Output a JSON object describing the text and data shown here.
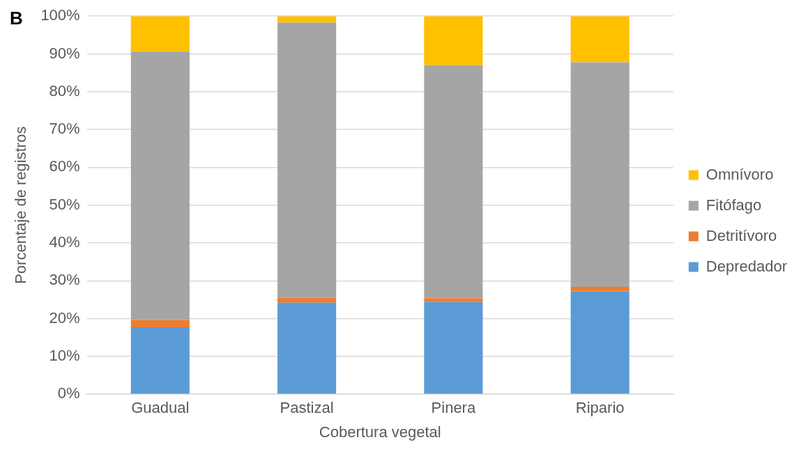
{
  "chart_data": {
    "type": "bar",
    "title": "B",
    "xlabel": "Cobertura vegetal",
    "ylabel": "Porcentaje de registros",
    "categories": [
      "Guadual",
      "Pastizal",
      "Pinera",
      "Ripario"
    ],
    "series": [
      {
        "name": "Depredador",
        "color": "#5b9bd5",
        "values": [
          17.7,
          24.2,
          24.4,
          27.2
        ]
      },
      {
        "name": "Detritívoro",
        "color": "#ed7d31",
        "values": [
          1.9,
          1.3,
          1.0,
          1.2
        ]
      },
      {
        "name": "Fitófago",
        "color": "#a5a5a5",
        "values": [
          71.0,
          72.8,
          61.6,
          59.4
        ]
      },
      {
        "name": "Omnívoro",
        "color": "#ffc000",
        "values": [
          9.4,
          1.7,
          13.0,
          12.2
        ]
      }
    ],
    "stacked": true,
    "ylim": [
      0,
      100
    ],
    "yticks": [
      {
        "value": 0,
        "label": "0%"
      },
      {
        "value": 10,
        "label": "10%"
      },
      {
        "value": 20,
        "label": "20%"
      },
      {
        "value": 30,
        "label": "30%"
      },
      {
        "value": 40,
        "label": "40%"
      },
      {
        "value": 50,
        "label": "50%"
      },
      {
        "value": 60,
        "label": "60%"
      },
      {
        "value": 70,
        "label": "70%"
      },
      {
        "value": 80,
        "label": "80%"
      },
      {
        "value": 90,
        "label": "90%"
      },
      {
        "value": 100,
        "label": "100%"
      }
    ],
    "grid": "y",
    "legend": "right"
  }
}
